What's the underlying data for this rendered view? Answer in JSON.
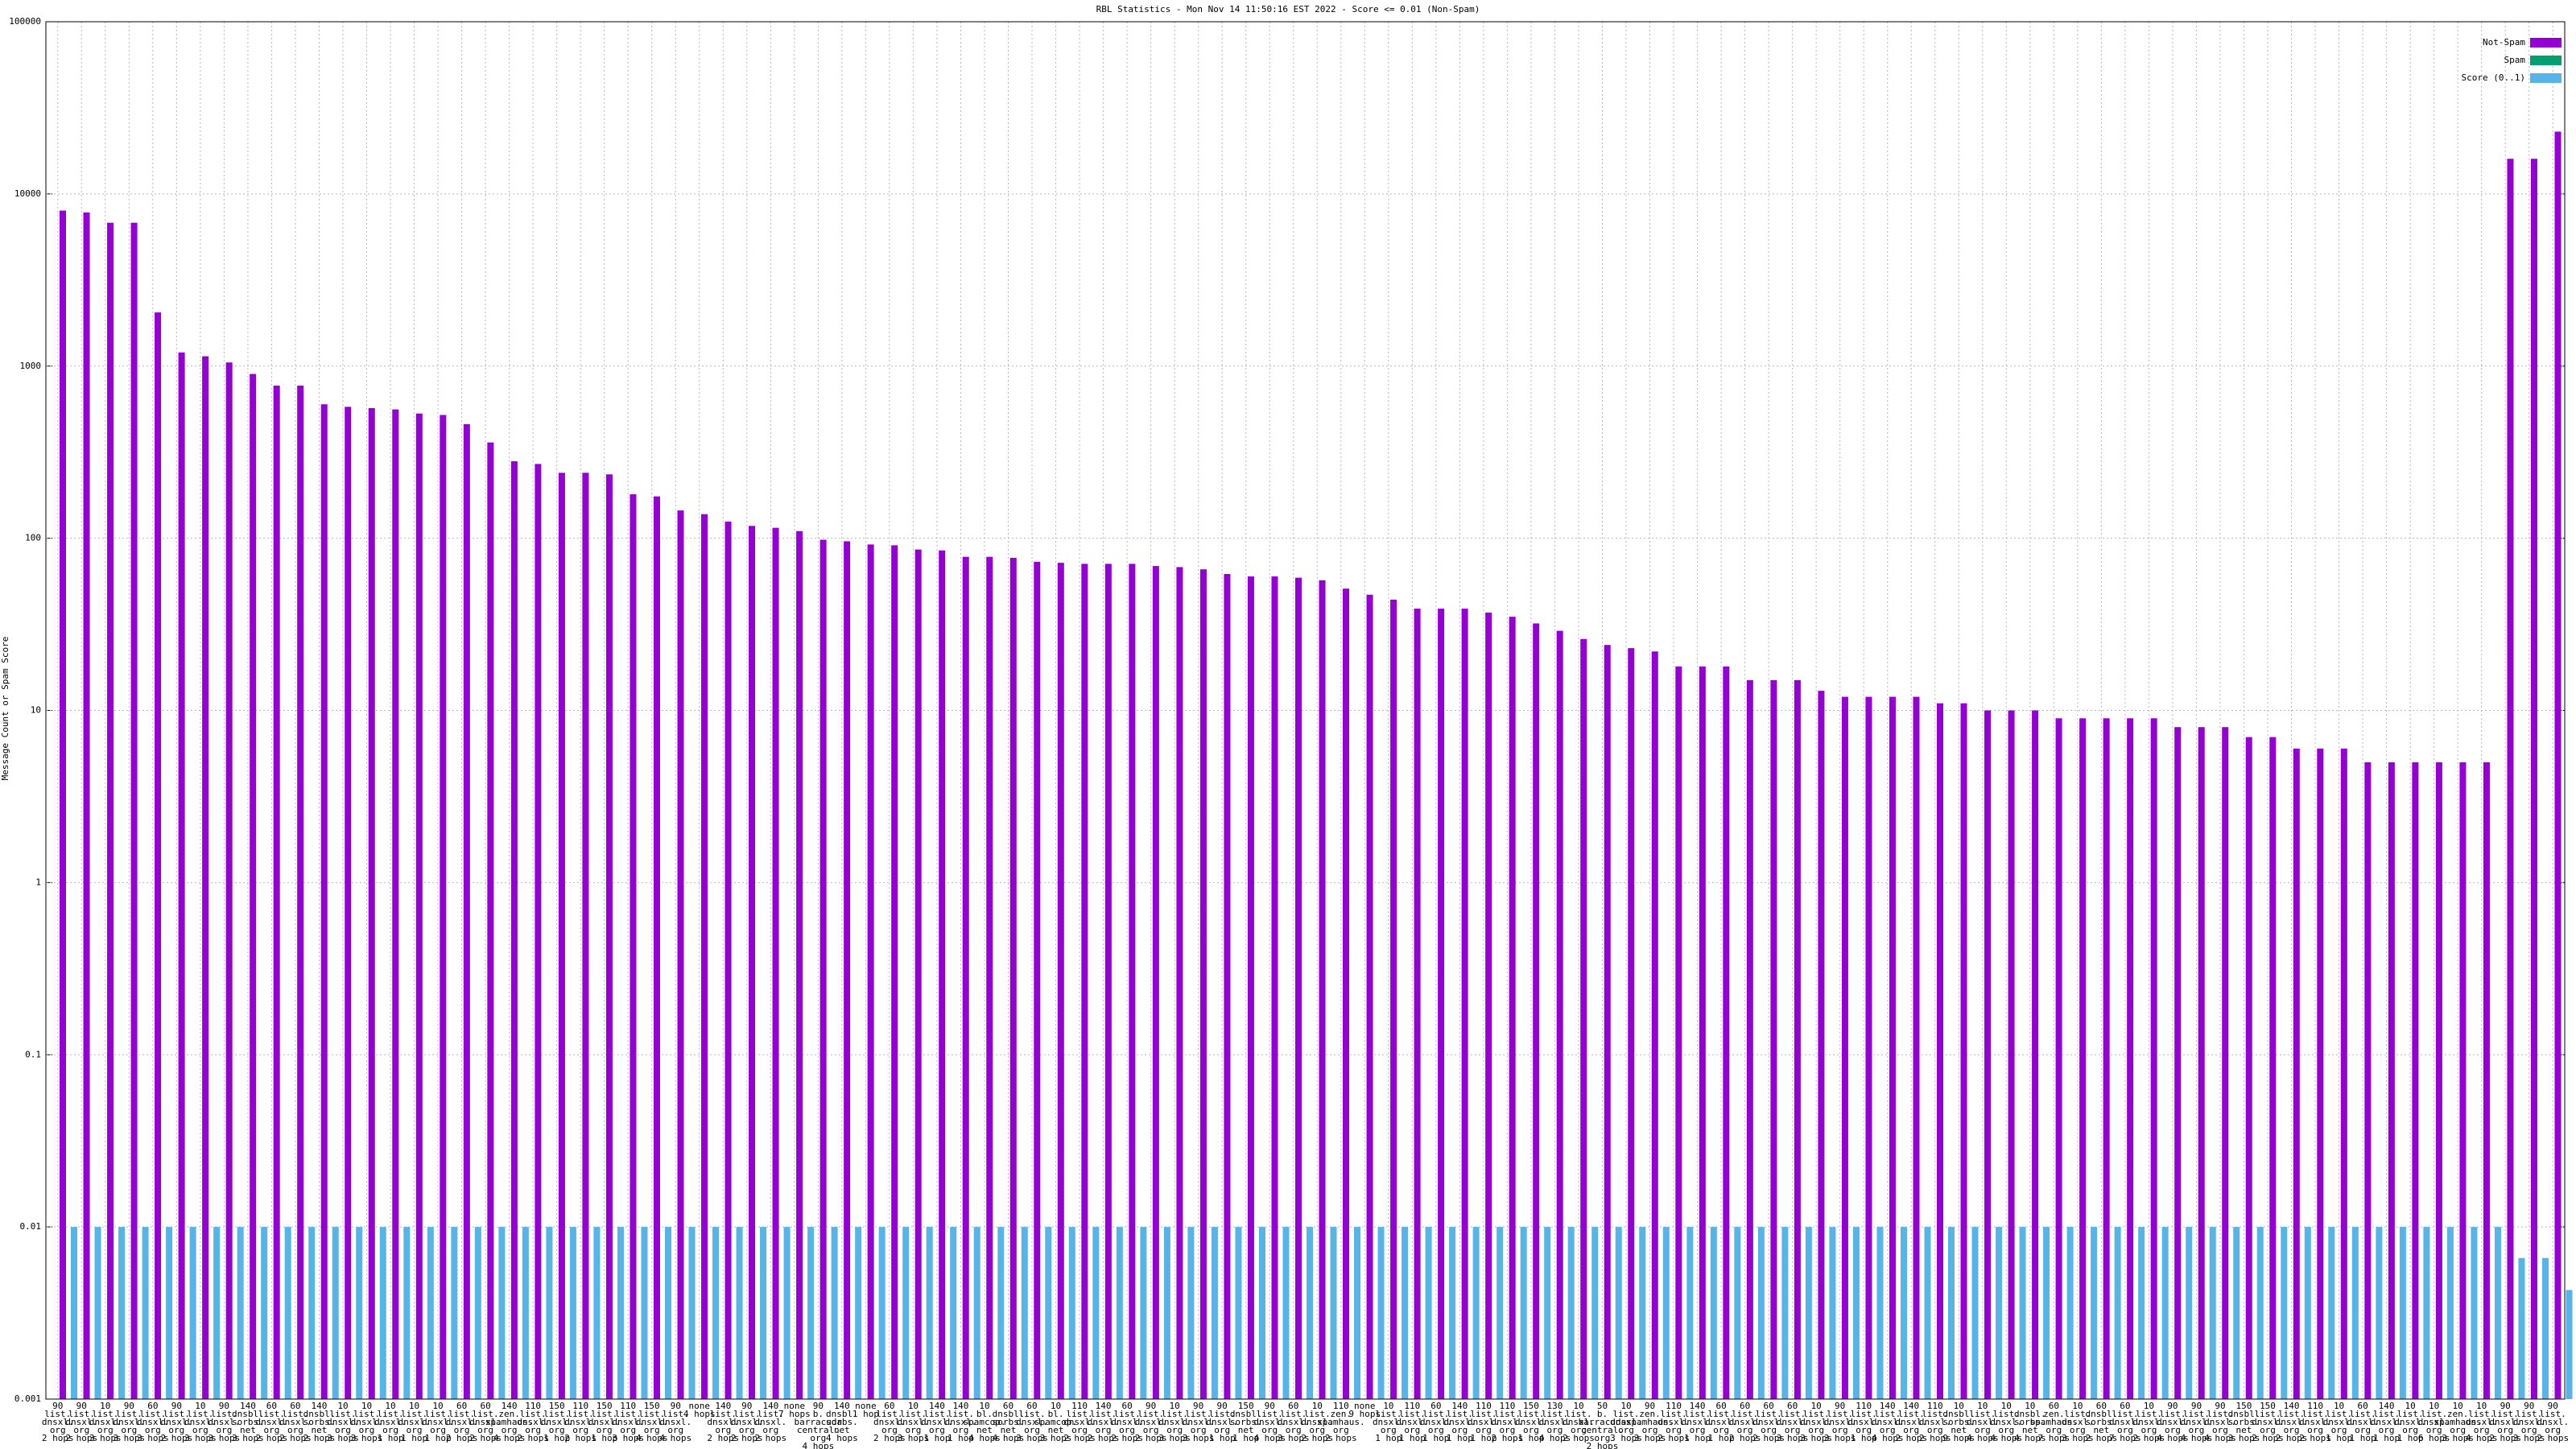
{
  "chart_data": {
    "type": "bar",
    "title": "RBL Statistics - Mon Nov 14 11:50:16 EST 2022 - Score <= 0.01 (Non-Spam)",
    "y_label": "Message Count or Spam Score",
    "yscale": "log",
    "ylim": [
      0.001,
      100000
    ],
    "yticks": [
      0.001,
      0.01,
      0.1,
      1,
      10,
      100,
      1000,
      10000,
      100000
    ],
    "grid": true,
    "legend": "upper right",
    "categories": [
      "90\nlist.\ndnsxl.\norg\n2 hops",
      "90\nlist.\ndnsxl.\norg\n2 hops",
      "10\nlist.\ndnsxl.\norg\n3 hops",
      "90\nlist.\ndnsxl.\norg\n3 hops",
      "60\nlist.\ndnsxl.\norg\n3 hops",
      "90\nlist.\ndnsxl.\norg\n2 hops",
      "10\nlist.\ndnsxl.\norg\n3 hops",
      "90\nlist.\ndnsxl.\norg\n3 hops",
      "140\ndnsbl.\nsorbs.\nnet\n3 hops",
      "60\nlist.\ndnsxl.\norg\n2 hops",
      "60\nlist.\ndnsxl.\norg\n2 hops",
      "140\ndnsbl.\nsorbs.\nnet\n2 hops",
      "10\nlist.\ndnsxl.\norg\n3 hops",
      "10\nlist.\ndnsxl.\norg\n3 hops",
      "10\nlist.\ndnsxl.\norg\n1 hop",
      "10\nlist.\ndnsxl.\norg\n1 hop",
      "10\nlist.\ndnsxl.\norg\n1 hop",
      "60\nlist.\ndnsxl.\norg\n2 hops",
      "60\nlist.\ndnsxl.\norg\n2 hops",
      "140\nzen.\nspamhaus.\norg\n4 hops",
      "110\nlist.\ndnsxl.\norg\n2 hops",
      "150\nlist.\ndnsxl.\norg\n1 hop",
      "110\nlist.\ndnsxl.\norg\n2 hops",
      "150\nlist.\ndnsxl.\norg\n1 hop",
      "110\nlist.\ndnsxl.\norg\n3 hops",
      "150\nlist.\ndnsxl.\norg\n4 hops",
      "90\nlist.\ndnsxl.\norg\n4 hops",
      "none\n4 hops",
      "140\nlist.\ndnsxl.\norg\n2 hops",
      "90\nlist.\ndnsxl.\norg\n2 hops",
      "140\nlist.\ndnsxl.\norg\n2 hops",
      "none\n7 hops",
      "90\nb.\nbarracuda\ncentral.\norg\n4 hops",
      "140\ndnsbl.\nsorbs.\nnet\n4 hops",
      "none\n1 hop",
      "60\nlist.\ndnsxl.\norg\n2 hops",
      "10\nlist.\ndnsxl.\norg\n3 hops",
      "140\nlist.\ndnsxl.\norg\n1 hop",
      "140\nlist.\ndnsxl.\norg\n1 hop",
      "10\nbl.\nspamcop.\nnet\n4 hops",
      "60\ndnsbl.\nsorbs.\nnet\n4 hops",
      "60\nlist.\ndnsxl.\norg\n3 hops",
      "10\nbl.\nspamcop.\nnet\n3 hops",
      "110\nlist.\ndnsxl.\norg\n2 hops",
      "140\nlist.\ndnsxl.\norg\n2 hops",
      "60\nlist.\ndnsxl.\norg\n2 hops",
      "90\nlist.\ndnsxl.\norg\n2 hops",
      "10\nlist.\ndnsxl.\norg\n3 hops",
      "90\nlist.\ndnsxl.\norg\n3 hops",
      "90\nlist.\ndnsxl.\norg\n1 hop",
      "150\ndnsbl.\nsorbs.\nnet\n1 hop",
      "90\nlist.\ndnsxl.\norg\n4 hops",
      "60\nlist.\ndnsxl.\norg\n3 hops",
      "10\nlist.\ndnsxl.\norg\n2 hops",
      "110\nzen.\nspamhaus.\norg\n2 hops",
      "none\n9 hops",
      "10\nlist.\ndnsxl.\norg\n1 hop",
      "110\nlist.\ndnsxl.\norg\n1 hop",
      "60\nlist.\ndnsxl.\norg\n1 hop",
      "140\nlist.\ndnsxl.\norg\n1 hop",
      "110\nlist.\ndnsxl.\norg\n1 hop",
      "110\nlist.\ndnsxl.\norg\n2 hops",
      "150\nlist.\ndnsxl.\norg\n1 hop",
      "130\nlist.\ndnsxl.\norg\n4 hops",
      "10\nlist.\ndnsxl.\norg\n2 hops",
      "50\nb.\nbarracuda\ncentral.\norg\n2 hops",
      "10\nlist.\ndnsxl.\norg\n3 hops",
      "90\nzen.\nspamhaus.\norg\n3 hops",
      "110\nlist.\ndnsxl.\norg\n2 hops",
      "140\nlist.\ndnsxl.\norg\n1 hop",
      "60\nlist.\ndnsxl.\norg\n1 hop",
      "60\nlist.\ndnsxl.\norg\n2 hops",
      "60\nlist.\ndnsxl.\norg\n2 hops",
      "60\nlist.\ndnsxl.\norg\n3 hops",
      "10\nlist.\ndnsxl.\norg\n3 hops",
      "90\nlist.\ndnsxl.\norg\n3 hops",
      "110\nlist.\ndnsxl.\norg\n1 hop",
      "140\nlist.\ndnsxl.\norg\n4 hops",
      "140\nlist.\ndnsxl.\norg\n2 hops",
      "110\nlist.\ndnsxl.\norg\n2 hops",
      "10\ndnsbl.\nsorbs.\nnet\n9 hops",
      "10\nlist.\ndnsxl.\norg\n4 hops",
      "10\nlist.\ndnsxl.\norg\n4 hops",
      "10\ndnsbl.\nsorbs.\nnet\n4 hops",
      "60\nzen.\nspamhaus.\norg\n7 hops",
      "10\nlist.\ndnsxl.\norg\n3 hops",
      "60\ndnsbl.\nsorbs.\nnet\n2 hops",
      "60\nlist.\ndnsxl.\norg\n7 hops",
      "10\nlist.\ndnsxl.\norg\n2 hops",
      "90\nlist.\ndnsxl.\norg\n4 hops",
      "90\nlist.\ndnsxl.\norg\n4 hops",
      "90\nlist.\ndnsxl.\norg\n4 hops",
      "150\ndnsbl.\nsorbs.\nnet\n3 hops",
      "150\nlist.\ndnsxl.\norg\n2 hops",
      "140\nlist.\ndnsxl.\norg\n2 hops",
      "110\nlist.\ndnsxl.\norg\n2 hops",
      "10\nlist.\ndnsxl.\norg\n1 hop",
      "60\nlist.\ndnsxl.\norg\n1 hop",
      "140\nlist.\ndnsxl.\norg\n1 hop",
      "10\nlist.\ndnsxl.\norg\n1 hop",
      "10\nlist.\ndnsxl.\norg\n6 hops",
      "10\nzen.\nspamhaus.\norg\n3 hops",
      "10\nlist.\ndnsxl.\norg\n4 hops",
      "90\nlist.\ndnsxl.\norg\n2 hops",
      "90\nlist.\ndnsxl.\norg\n3 hops",
      "90\nlist.\ndnsxl.\norg\n2 hops"
    ],
    "series": [
      {
        "name": "Not-Spam",
        "color": "#9400d3",
        "values": [
          8000,
          7800,
          6800,
          6800,
          2050,
          1200,
          1140,
          1050,
          900,
          770,
          770,
          600,
          580,
          570,
          560,
          530,
          520,
          460,
          360,
          280,
          270,
          240,
          240,
          235,
          180,
          175,
          145,
          138,
          125,
          118,
          115,
          110,
          98,
          96,
          92,
          91,
          86,
          85,
          78,
          78,
          77,
          73,
          72,
          71,
          71,
          71,
          69,
          68,
          66,
          62,
          60,
          60,
          59,
          57,
          51,
          47,
          44,
          39,
          39,
          39,
          37,
          35,
          32,
          29,
          26,
          24,
          23,
          22,
          18,
          18,
          18,
          15,
          15,
          15,
          13,
          12,
          12,
          12,
          12,
          11,
          11,
          10,
          10,
          10,
          9,
          9,
          9,
          9,
          9,
          8,
          8,
          8,
          7,
          7,
          6,
          6,
          6,
          5,
          5,
          5,
          5,
          5,
          5,
          16000,
          16000,
          23000
        ]
      },
      {
        "name": "Spam",
        "color": "#009e73",
        "values": [
          0,
          0,
          0,
          0,
          0,
          0,
          0,
          0,
          0,
          0,
          0,
          0,
          0,
          0,
          0,
          0,
          0,
          0,
          0,
          0,
          0,
          0,
          0,
          0,
          0,
          0,
          0,
          0,
          0,
          0,
          0,
          0,
          0,
          0,
          0,
          0,
          0,
          0,
          0,
          0,
          0,
          0,
          0,
          0,
          0,
          0,
          0,
          0,
          0,
          0,
          0,
          0,
          0,
          0,
          0,
          0,
          0,
          0,
          0,
          0,
          0,
          0,
          0,
          0,
          0,
          0,
          0,
          0,
          0,
          0,
          0,
          0,
          0,
          0,
          0,
          0,
          0,
          0,
          0,
          0,
          0,
          0,
          0,
          0,
          0,
          0,
          0,
          0,
          0,
          0,
          0,
          0,
          0,
          0,
          0,
          0,
          0,
          0,
          0,
          0,
          0,
          0,
          0,
          0,
          0,
          0
        ]
      },
      {
        "name": "Score (0..1)",
        "color": "#56b4e9",
        "values": [
          0.01,
          0.01,
          0.01,
          0.01,
          0.01,
          0.01,
          0.01,
          0.01,
          0.01,
          0.01,
          0.01,
          0.01,
          0.01,
          0.01,
          0.01,
          0.01,
          0.01,
          0.01,
          0.01,
          0.01,
          0.01,
          0.01,
          0.01,
          0.01,
          0.01,
          0.01,
          0.01,
          0.01,
          0.01,
          0.01,
          0.01,
          0.01,
          0.01,
          0.01,
          0.01,
          0.01,
          0.01,
          0.01,
          0.01,
          0.01,
          0.01,
          0.01,
          0.01,
          0.01,
          0.01,
          0.01,
          0.01,
          0.01,
          0.01,
          0.01,
          0.01,
          0.01,
          0.01,
          0.01,
          0.01,
          0.01,
          0.01,
          0.01,
          0.01,
          0.01,
          0.01,
          0.01,
          0.01,
          0.01,
          0.01,
          0.01,
          0.01,
          0.01,
          0.01,
          0.01,
          0.01,
          0.01,
          0.01,
          0.01,
          0.01,
          0.01,
          0.01,
          0.01,
          0.01,
          0.01,
          0.01,
          0.01,
          0.01,
          0.01,
          0.01,
          0.01,
          0.01,
          0.01,
          0.01,
          0.01,
          0.01,
          0.01,
          0.01,
          0.01,
          0.01,
          0.01,
          0.01,
          0.01,
          0.01,
          0.01,
          0.01,
          0.01,
          0.01,
          0.0066,
          0.0066,
          0.0043
        ]
      }
    ]
  }
}
